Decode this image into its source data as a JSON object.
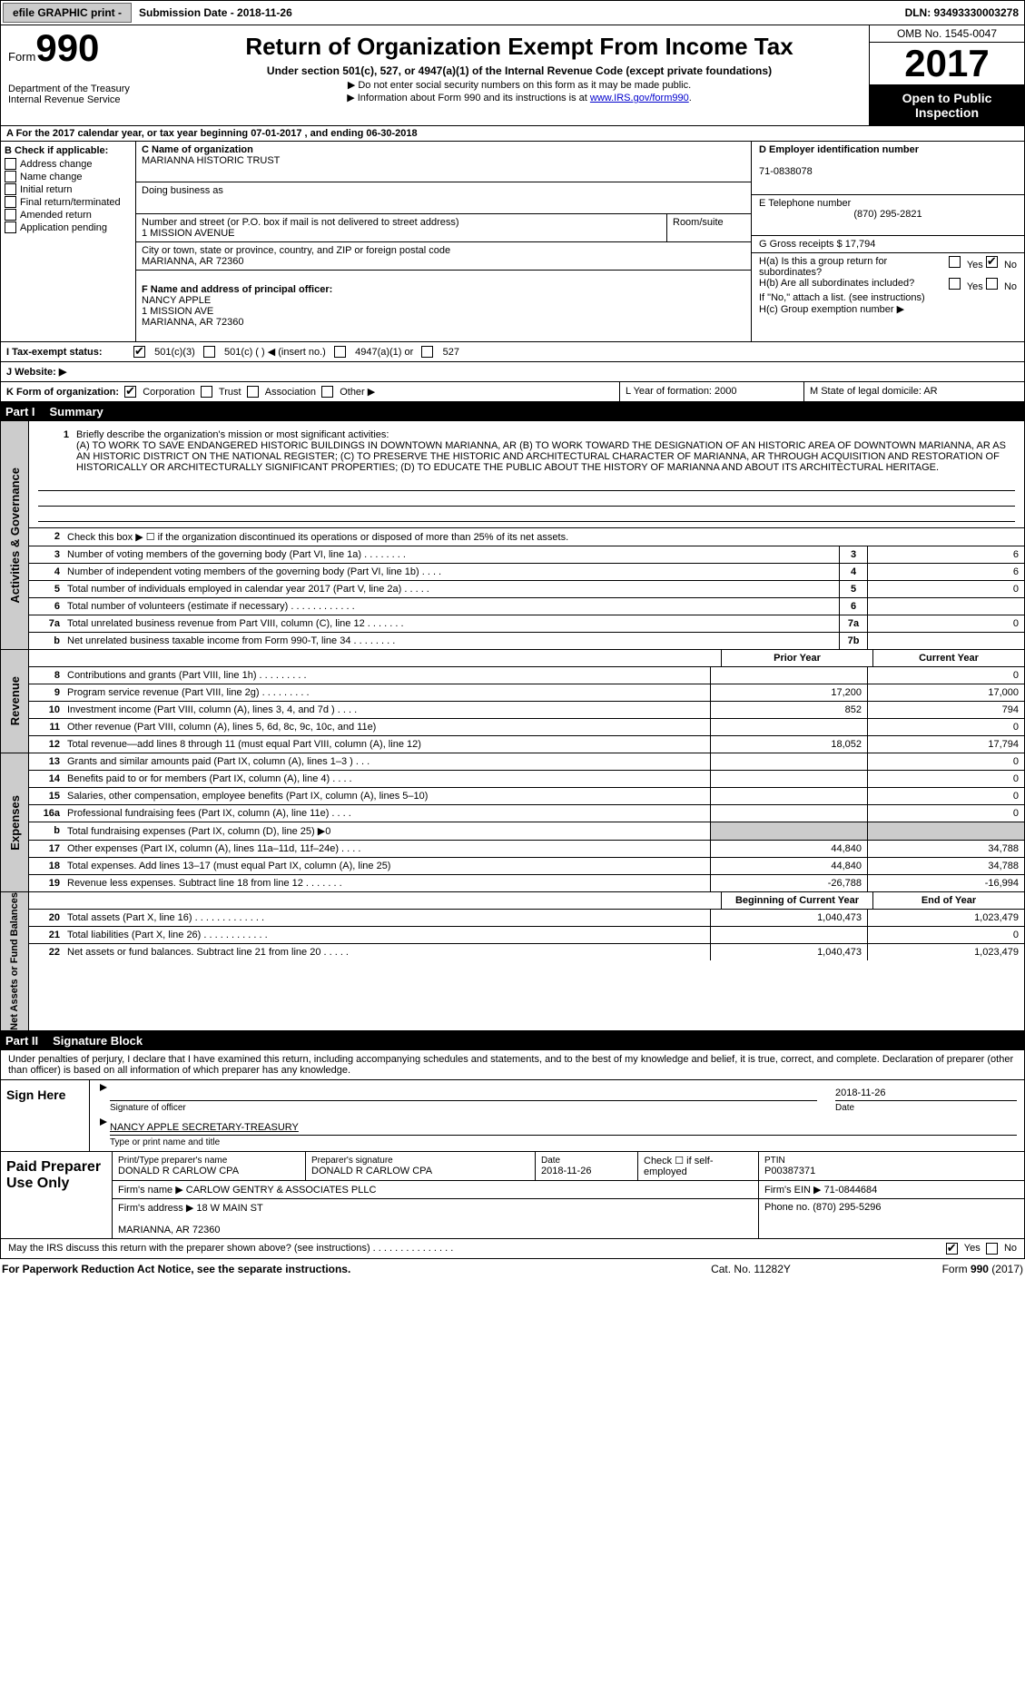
{
  "topbar": {
    "efile": "efile GRAPHIC print -",
    "sub_label": "Submission Date - 2018-11-26",
    "dln": "DLN: 93493330003278"
  },
  "header": {
    "form_word": "Form",
    "form_no": "990",
    "dept1": "Department of the Treasury",
    "dept2": "Internal Revenue Service",
    "title": "Return of Organization Exempt From Income Tax",
    "sub1": "Under section 501(c), 527, or 4947(a)(1) of the Internal Revenue Code (except private foundations)",
    "sub2": "▶ Do not enter social security numbers on this form as it may be made public.",
    "sub3_pre": "▶ Information about Form 990 and its instructions is at ",
    "sub3_link": "www.IRS.gov/form990",
    "omb": "OMB No. 1545-0047",
    "year": "2017",
    "open1": "Open to Public",
    "open2": "Inspection"
  },
  "line_a": "A   For the 2017 calendar year, or tax year beginning 07-01-2017   , and ending 06-30-2018",
  "box_b": {
    "hd": "B Check if applicable:",
    "items": [
      "Address change",
      "Name change",
      "Initial return",
      "Final return/terminated",
      "Amended return",
      "Application pending"
    ]
  },
  "box_c": {
    "name_label": "C Name of organization",
    "name": "MARIANNA HISTORIC TRUST",
    "dba": "Doing business as",
    "street_label": "Number and street (or P.O. box if mail is not delivered to street address)",
    "room": "Room/suite",
    "street": "1 MISSION AVENUE",
    "city_label": "City or town, state or province, country, and ZIP or foreign postal code",
    "city": "MARIANNA, AR  72360",
    "officer_label": "F  Name and address of principal officer:",
    "officer": "NANCY APPLE\n1 MISSION AVE\nMARIANNA, AR  72360"
  },
  "box_d": {
    "ein_label": "D Employer identification number",
    "ein": "71-0838078",
    "tel_label": "E Telephone number",
    "tel": "(870) 295-2821",
    "gross": "G Gross receipts $ 17,794",
    "ha": "H(a)  Is this a group return for subordinates?",
    "hb": "H(b)  Are all subordinates included?",
    "hno": "If \"No,\" attach a list. (see instructions)",
    "hc": "H(c)  Group exemption number ▶",
    "yes": "Yes",
    "no": "No"
  },
  "row_i": {
    "label": "I   Tax-exempt status:",
    "o1": "501(c)(3)",
    "o2": "501(c) (  ) ◀ (insert no.)",
    "o3": "4947(a)(1) or",
    "o4": "527"
  },
  "row_j": "J   Website: ▶",
  "row_k": {
    "label": "K Form of organization:",
    "o1": "Corporation",
    "o2": "Trust",
    "o3": "Association",
    "o4": "Other ▶",
    "yr_label": "L Year of formation: 2000",
    "state": "M State of legal domicile: AR"
  },
  "part1": {
    "hdr": "Part I",
    "title": "Summary"
  },
  "gov": {
    "tab": "Activities & Governance",
    "l1_label": "Briefly describe the organization's mission or most significant activities:",
    "l1": "(A) TO WORK TO SAVE ENDANGERED HISTORIC BUILDINGS IN DOWNTOWN MARIANNA, AR (B) TO WORK TOWARD THE DESIGNATION OF AN HISTORIC AREA OF DOWNTOWN MARIANNA, AR AS AN HISTORIC DISTRICT ON THE NATIONAL REGISTER; (C) TO PRESERVE THE HISTORIC AND ARCHITECTURAL CHARACTER OF MARIANNA, AR THROUGH ACQUISITION AND RESTORATION OF HISTORICALLY OR ARCHITECTURALLY SIGNIFICANT PROPERTIES; (D) TO EDUCATE THE PUBLIC ABOUT THE HISTORY OF MARIANNA AND ABOUT ITS ARCHITECTURAL HERITAGE.",
    "l2": "Check this box ▶ ☐ if the organization discontinued its operations or disposed of more than 25% of its net assets.",
    "rows": [
      {
        "n": "3",
        "d": "Number of voting members of the governing body (Part VI, line 1a)   .    .    .    .    .    .    .    .",
        "b": "3",
        "v": "6"
      },
      {
        "n": "4",
        "d": "Number of independent voting members of the governing body (Part VI, line 1b)    .    .    .    .",
        "b": "4",
        "v": "6"
      },
      {
        "n": "5",
        "d": "Total number of individuals employed in calendar year 2017 (Part V, line 2a)   .    .    .    .    .",
        "b": "5",
        "v": "0"
      },
      {
        "n": "6",
        "d": "Total number of volunteers (estimate if necessary)   .    .    .    .    .    .    .    .    .    .    .    .",
        "b": "6",
        "v": ""
      },
      {
        "n": "7a",
        "d": "Total unrelated business revenue from Part VIII, column (C), line 12   .    .    .    .    .    .    .",
        "b": "7a",
        "v": "0"
      },
      {
        "n": "b",
        "d": "Net unrelated business taxable income from Form 990-T, line 34  .    .    .    .    .    .    .    .",
        "b": "7b",
        "v": ""
      }
    ]
  },
  "rev": {
    "tab": "Revenue",
    "prior": "Prior Year",
    "curr": "Current Year",
    "rows": [
      {
        "n": "8",
        "d": "Contributions and grants (Part VIII, line 1h)   .    .    .    .    .    .    .    .    .",
        "p": "",
        "c": "0"
      },
      {
        "n": "9",
        "d": "Program service revenue (Part VIII, line 2g)    .    .    .    .    .    .    .    .    .",
        "p": "17,200",
        "c": "17,000"
      },
      {
        "n": "10",
        "d": "Investment income (Part VIII, column (A), lines 3, 4, and 7d )   .    .    .    .",
        "p": "852",
        "c": "794"
      },
      {
        "n": "11",
        "d": "Other revenue (Part VIII, column (A), lines 5, 6d, 8c, 9c, 10c, and 11e)",
        "p": "",
        "c": "0"
      },
      {
        "n": "12",
        "d": "Total revenue—add lines 8 through 11 (must equal Part VIII, column (A), line 12)",
        "p": "18,052",
        "c": "17,794"
      }
    ]
  },
  "exp": {
    "tab": "Expenses",
    "rows": [
      {
        "n": "13",
        "d": "Grants and similar amounts paid (Part IX, column (A), lines 1–3 )   .    .    .",
        "p": "",
        "c": "0"
      },
      {
        "n": "14",
        "d": "Benefits paid to or for members (Part IX, column (A), line 4)   .    .    .    .",
        "p": "",
        "c": "0"
      },
      {
        "n": "15",
        "d": "Salaries, other compensation, employee benefits (Part IX, column (A), lines 5–10)",
        "p": "",
        "c": "0"
      },
      {
        "n": "16a",
        "d": "Professional fundraising fees (Part IX, column (A), line 11e)   .    .    .    .",
        "p": "",
        "c": "0"
      },
      {
        "n": "b",
        "d": "Total fundraising expenses (Part IX, column (D), line 25) ▶0",
        "p": "grey",
        "c": "grey"
      },
      {
        "n": "17",
        "d": "Other expenses (Part IX, column (A), lines 11a–11d, 11f–24e)   .    .    .    .",
        "p": "44,840",
        "c": "34,788"
      },
      {
        "n": "18",
        "d": "Total expenses. Add lines 13–17 (must equal Part IX, column (A), line 25)",
        "p": "44,840",
        "c": "34,788"
      },
      {
        "n": "19",
        "d": "Revenue less expenses. Subtract line 18 from line 12  .    .    .    .    .    .    .",
        "p": "-26,788",
        "c": "-16,994"
      }
    ]
  },
  "net": {
    "tab": "Net Assets or Fund Balances",
    "begin": "Beginning of Current Year",
    "end": "End of Year",
    "rows": [
      {
        "n": "20",
        "d": "Total assets (Part X, line 16)   .    .    .    .    .    .    .    .    .    .    .    .    .",
        "p": "1,040,473",
        "c": "1,023,479"
      },
      {
        "n": "21",
        "d": "Total liabilities (Part X, line 26)   .    .    .    .    .    .    .    .    .    .    .    .",
        "p": "",
        "c": "0"
      },
      {
        "n": "22",
        "d": "Net assets or fund balances. Subtract line 21 from line 20   .    .    .    .    .",
        "p": "1,040,473",
        "c": "1,023,479"
      }
    ]
  },
  "part2": {
    "hdr": "Part II",
    "title": "Signature Block"
  },
  "perjury": "Under penalties of perjury, I declare that I have examined this return, including accompanying schedules and statements, and to the best of my knowledge and belief, it is true, correct, and complete. Declaration of preparer (other than officer) is based on all information of which preparer has any knowledge.",
  "sign": {
    "label": "Sign Here",
    "sig_of": "Signature of officer",
    "date": "Date",
    "date_v": "2018-11-26",
    "name": "NANCY APPLE SECRETARY-TREASURY",
    "name_l": "Type or print name and title"
  },
  "prep": {
    "label": "Paid Preparer Use Only",
    "name_l": "Print/Type preparer's name",
    "name": "DONALD R CARLOW CPA",
    "sig_l": "Preparer's signature",
    "sig": "DONALD R CARLOW CPA",
    "date_l": "Date",
    "date": "2018-11-26",
    "chk_l": "Check ☐ if self-employed",
    "ptin_l": "PTIN",
    "ptin": "P00387371",
    "firm_l": "Firm's name    ▶",
    "firm": "CARLOW GENTRY & ASSOCIATES PLLC",
    "ein_l": "Firm's EIN ▶",
    "ein": "71-0844684",
    "addr_l": "Firm's address ▶",
    "addr": "18 W MAIN ST",
    "city": "MARIANNA, AR  72360",
    "phone_l": "Phone no.",
    "phone": "(870) 295-5296"
  },
  "discuss": "May the IRS discuss this return with the preparer shown above? (see instructions)   .    .    .    .    .    .    .    .    .    .    .    .    .    .    .",
  "footer": {
    "l": "For Paperwork Reduction Act Notice, see the separate instructions.",
    "c": "Cat. No. 11282Y",
    "r": "Form 990 (2017)"
  }
}
